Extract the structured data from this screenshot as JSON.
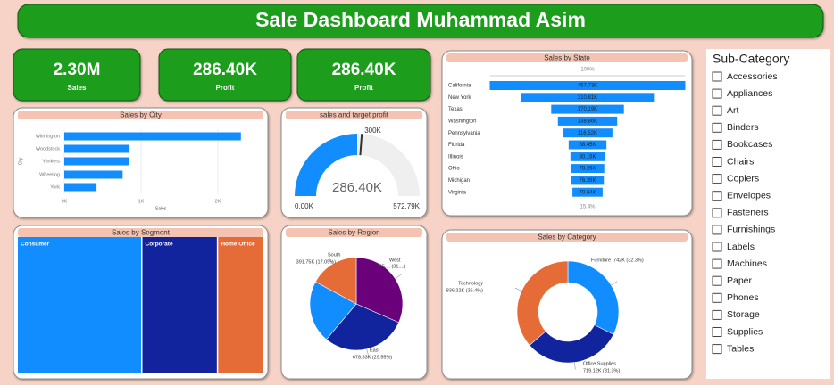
{
  "title": "Sale Dashboard Muhammad Asim",
  "kpis": [
    {
      "value": "2.30M",
      "label": "Sales"
    },
    {
      "value": "286.40K",
      "label": "Profit"
    },
    {
      "value": "286.40K",
      "label": "Profit"
    }
  ],
  "chart_data": [
    {
      "type": "bar",
      "title": "Sales by City",
      "categories": [
        "Wilmington",
        "Woodstock",
        "Yonkers",
        "Wheeling",
        "York"
      ],
      "values": [
        2300,
        850,
        840,
        760,
        420
      ],
      "color": "#118dff",
      "xlim": [
        0,
        2500
      ],
      "xticks": [
        {
          "value": 0,
          "label": "0K"
        },
        {
          "value": 1000,
          "label": "1K"
        },
        {
          "value": 2000,
          "label": "2K"
        }
      ],
      "xlabel": "Sales",
      "ylabel": "City"
    },
    {
      "type": "gauge",
      "title": "sales and target profit",
      "value": 286.4,
      "value_label": "286.40K",
      "min": 0,
      "min_label": "0.00K",
      "max": 572.79,
      "max_label": "572.79K",
      "target": 300,
      "target_label": "300K",
      "color": "#118dff"
    },
    {
      "type": "funnel",
      "title": "Sales by State",
      "categories": [
        "California",
        "New York",
        "Texas",
        "Washington",
        "Pennsylvania",
        "Florida",
        "Illinois",
        "Ohio",
        "Michigan",
        "Virginia"
      ],
      "values": [
        457.73,
        310.81,
        170.19,
        138.86,
        116.52,
        88.45,
        80.16,
        78.26,
        76.28,
        70.64
      ],
      "value_labels": [
        "457.73K",
        "310.81K",
        "170.19K",
        "138.86K",
        "116.52K",
        "88.45K",
        "80.16K",
        "78.26K",
        "76.28K",
        "70.64K"
      ],
      "top_label": "100%",
      "bottom_label": "15.4%",
      "color": "#118dff"
    },
    {
      "type": "treemap",
      "title": "Sales by Segment",
      "categories": [
        "Consumer",
        "Corporate",
        "Home Office"
      ],
      "values": [
        1161,
        706,
        430
      ],
      "colors": [
        "#118dff",
        "#12239e",
        "#e66c37"
      ]
    },
    {
      "type": "pie",
      "title": "Sales by Region",
      "categories": [
        "West",
        "East",
        null,
        "South"
      ],
      "values": [
        725.46,
        678.83,
        501.24,
        391.75
      ],
      "value_labels": [
        "725.... (31....)",
        "678.83K (29.55%)",
        null,
        "391.75K (17.05%)"
      ],
      "colors": [
        "#6b007b",
        "#12239e",
        "#118dff",
        "#e66c37"
      ]
    },
    {
      "type": "donut",
      "title": "Sales by Category",
      "categories": [
        "Furniture",
        "Office Supplies",
        "Technology"
      ],
      "values": [
        742,
        719.12,
        836.22
      ],
      "value_labels": [
        "742K (32.3%)",
        "719.12K (31.3%)",
        "836.22K (36.4%)"
      ],
      "colors": [
        "#118dff",
        "#12239e",
        "#e66c37"
      ]
    }
  ],
  "slicer": {
    "title": "Sub-Category",
    "items": [
      "Accessories",
      "Appliances",
      "Art",
      "Binders",
      "Bookcases",
      "Chairs",
      "Copiers",
      "Envelopes",
      "Fasteners",
      "Furnishings",
      "Labels",
      "Machines",
      "Paper",
      "Phones",
      "Storage",
      "Supplies",
      "Tables"
    ]
  }
}
